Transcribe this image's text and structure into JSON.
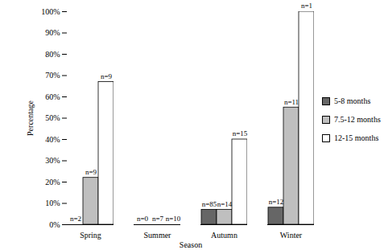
{
  "chart_data": {
    "type": "bar",
    "x_label": "Season",
    "y_label": "Percentage",
    "categories": [
      "Spring",
      "Summer",
      "Autumn",
      "Winter"
    ],
    "series": [
      {
        "name": "5-8 months",
        "color": "#666666",
        "values": [
          0,
          0,
          7,
          8
        ],
        "n_labels": [
          "n=2",
          "n=0",
          "n=85",
          "n=12"
        ]
      },
      {
        "name": "7.5-12 months",
        "color": "#bfbfbf",
        "values": [
          22,
          0,
          7,
          55
        ],
        "n_labels": [
          "n=9",
          "n=7",
          "n=14",
          "n=11"
        ]
      },
      {
        "name": "12-15 months",
        "color": "#ffffff",
        "values": [
          67,
          0,
          40,
          100
        ],
        "n_labels": [
          "n=9",
          "n=10",
          "n=15",
          "n=1"
        ]
      }
    ],
    "ylim": [
      0,
      100
    ],
    "yticks": [
      {
        "value": 0,
        "label": "0%"
      },
      {
        "value": 10,
        "label": "10%"
      },
      {
        "value": 20,
        "label": "20%"
      },
      {
        "value": 30,
        "label": "30%"
      },
      {
        "value": 40,
        "label": "40%"
      },
      {
        "value": 50,
        "label": "50%"
      },
      {
        "value": 60,
        "label": "60%"
      },
      {
        "value": 70,
        "label": "70%"
      },
      {
        "value": 80,
        "label": "80%"
      },
      {
        "value": 90,
        "label": "90%"
      },
      {
        "value": 100,
        "label": "100%"
      }
    ],
    "grid": false,
    "legend": "right",
    "data_labels": false
  }
}
